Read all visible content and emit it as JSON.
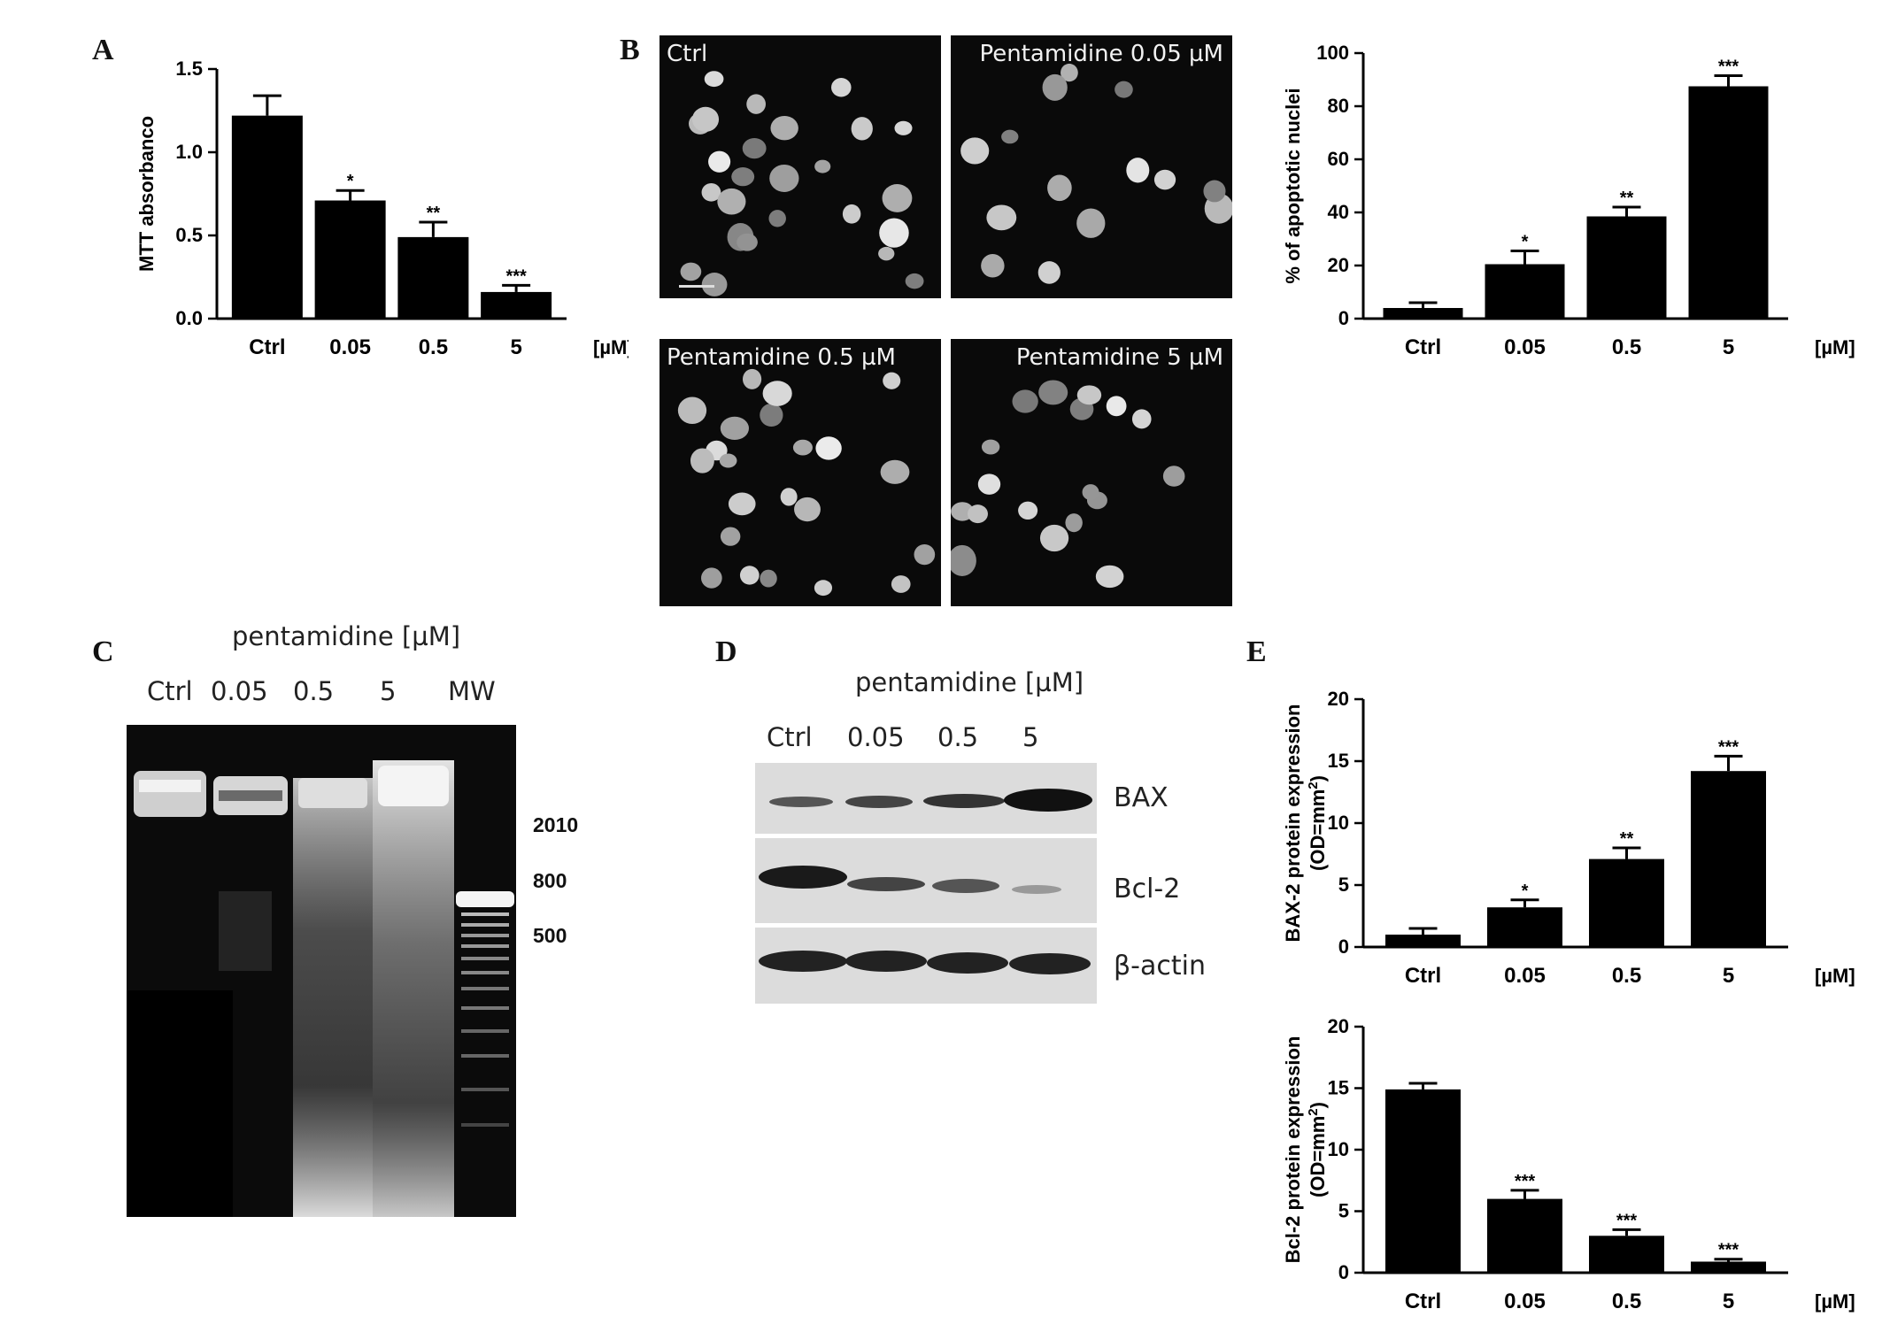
{
  "panels": {
    "A": "A",
    "B": "B",
    "C": "C",
    "D": "D",
    "E": "E"
  },
  "unit_label": "[µM]",
  "micrographs": [
    {
      "label": "Ctrl"
    },
    {
      "label": "Pentamidine 0.05 µM"
    },
    {
      "label": "Pentamidine 0.5 µM"
    },
    {
      "label": "Pentamidine 5 µM"
    }
  ],
  "gel": {
    "title": "pentamidine [µM]",
    "lanes": [
      "Ctrl",
      "0.05",
      "0.5",
      "5",
      "MW"
    ],
    "markers": [
      "2010",
      "800",
      "500"
    ]
  },
  "western": {
    "title": "pentamidine [µM]",
    "lanes": [
      "Ctrl",
      "0.05",
      "0.5",
      "5"
    ],
    "bands": [
      "BAX",
      "Bcl-2",
      "β-actin"
    ]
  },
  "chart_data": [
    {
      "id": "A",
      "type": "bar",
      "categories": [
        "Ctrl",
        "0.05",
        "0.5",
        "5"
      ],
      "values": [
        1.22,
        0.71,
        0.49,
        0.16
      ],
      "errors": [
        0.12,
        0.06,
        0.09,
        0.04
      ],
      "significance": [
        "",
        "*",
        "**",
        "***"
      ],
      "ylabel": "MTT absorbanco",
      "xunit": "[µM]",
      "ylim": [
        0,
        1.5
      ],
      "yticks": [
        "0.0",
        "0.5",
        "1.0",
        "1.5"
      ],
      "ytick_values": [
        0,
        0.5,
        1.0,
        1.5
      ],
      "bar_color": "#000000"
    },
    {
      "id": "B",
      "type": "bar",
      "categories": [
        "Ctrl",
        "0.05",
        "0.5",
        "5"
      ],
      "values": [
        4,
        20.5,
        38.5,
        87.5
      ],
      "errors": [
        2,
        5,
        3.5,
        4
      ],
      "significance": [
        "",
        "*",
        "**",
        "***"
      ],
      "ylabel": "% of apoptotic nuclei",
      "xunit": "[µM]",
      "ylim": [
        0,
        100
      ],
      "yticks": [
        "0",
        "20",
        "40",
        "60",
        "80",
        "100"
      ],
      "ytick_values": [
        0,
        20,
        40,
        60,
        80,
        100
      ],
      "bar_color": "#000000"
    },
    {
      "id": "E1",
      "type": "bar",
      "categories": [
        "Ctrl",
        "0.05",
        "0.5",
        "5"
      ],
      "values": [
        1,
        3.2,
        7.1,
        14.2
      ],
      "errors": [
        0.5,
        0.6,
        0.9,
        1.2
      ],
      "significance": [
        "",
        "*",
        "**",
        "***"
      ],
      "ylabel": "BAX-2 protein expression",
      "ylabel2": "(OD=mm",
      "xunit": "[µM]",
      "ylim": [
        0,
        20
      ],
      "yticks": [
        "0",
        "5",
        "10",
        "15",
        "20"
      ],
      "ytick_values": [
        0,
        5,
        10,
        15,
        20
      ],
      "bar_color": "#000000"
    },
    {
      "id": "E2",
      "type": "bar",
      "categories": [
        "Ctrl",
        "0.05",
        "0.5",
        "5"
      ],
      "values": [
        14.9,
        6.0,
        3.0,
        0.9
      ],
      "errors": [
        0.5,
        0.7,
        0.5,
        0.2
      ],
      "significance": [
        "",
        "***",
        "***",
        "***"
      ],
      "ylabel": "Bcl-2 protein expression",
      "ylabel2": "(OD=mm",
      "xunit": "[µM]",
      "ylim": [
        0,
        20
      ],
      "yticks": [
        "0",
        "5",
        "10",
        "15",
        "20"
      ],
      "ytick_values": [
        0,
        5,
        10,
        15,
        20
      ],
      "bar_color": "#000000"
    }
  ]
}
